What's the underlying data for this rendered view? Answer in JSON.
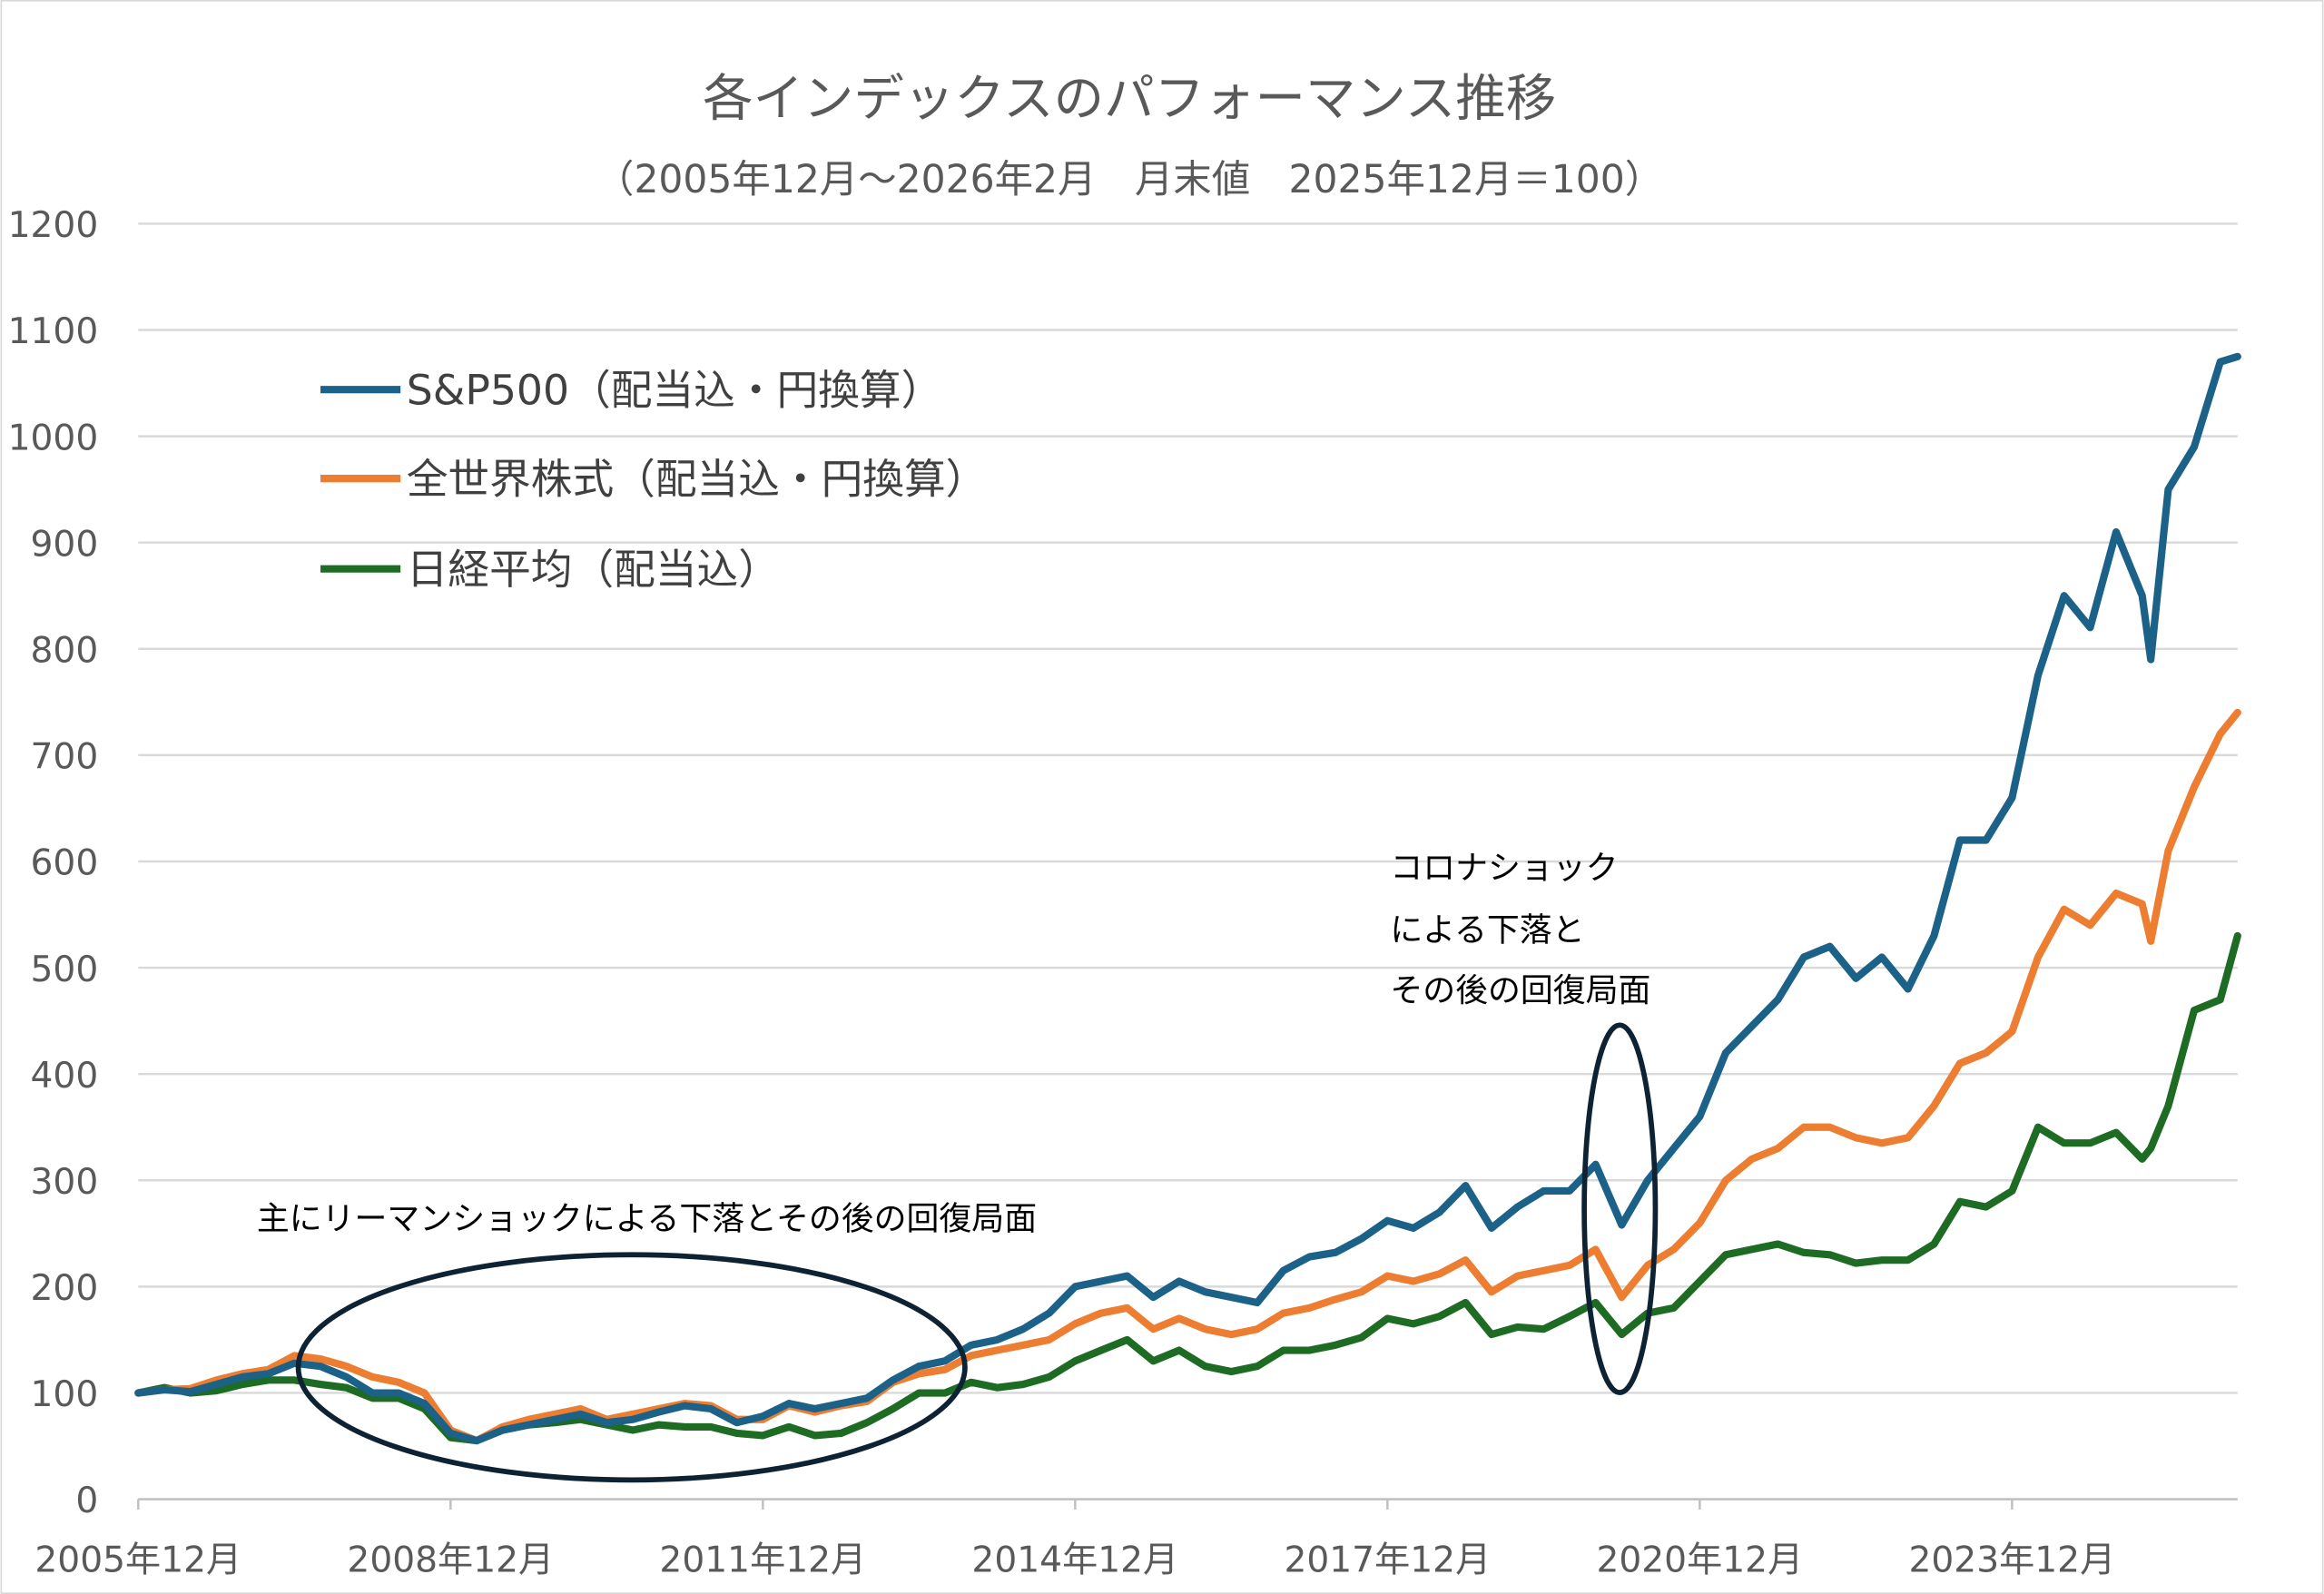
{
  "chart_data": {
    "type": "line",
    "title": "各インデックスのパフォーマンス推移",
    "subtitle": "（2005年12月～2026年2月　月末値　2025年12月＝100）",
    "xlabel": "",
    "ylabel": "",
    "ylim": [
      0,
      1200
    ],
    "yticks": [
      "0",
      "100",
      "200",
      "300",
      "400",
      "500",
      "600",
      "700",
      "800",
      "900",
      "1000",
      "1100",
      "1200"
    ],
    "xticks": [
      "2005年12月",
      "2008年12月",
      "2011年12月",
      "2014年12月",
      "2017年12月",
      "2020年12月",
      "2023年12月"
    ],
    "xtick_months": [
      "2005-12",
      "2008-12",
      "2011-12",
      "2014-12",
      "2017-12",
      "2020-12",
      "2023-12"
    ],
    "grid": true,
    "legend_position": "top-left",
    "x": [
      "2005-12",
      "2006-03",
      "2006-06",
      "2006-09",
      "2006-12",
      "2007-03",
      "2007-06",
      "2007-09",
      "2007-12",
      "2008-03",
      "2008-06",
      "2008-09",
      "2008-12",
      "2009-03",
      "2009-06",
      "2009-09",
      "2009-12",
      "2010-03",
      "2010-06",
      "2010-09",
      "2010-12",
      "2011-03",
      "2011-06",
      "2011-09",
      "2011-12",
      "2012-03",
      "2012-06",
      "2012-09",
      "2012-12",
      "2013-03",
      "2013-06",
      "2013-09",
      "2013-12",
      "2014-03",
      "2014-06",
      "2014-09",
      "2014-12",
      "2015-03",
      "2015-06",
      "2015-09",
      "2015-12",
      "2016-03",
      "2016-06",
      "2016-09",
      "2016-12",
      "2017-03",
      "2017-06",
      "2017-09",
      "2017-12",
      "2018-03",
      "2018-06",
      "2018-09",
      "2018-12",
      "2019-03",
      "2019-06",
      "2019-09",
      "2019-12",
      "2020-03",
      "2020-06",
      "2020-09",
      "2020-12",
      "2021-03",
      "2021-06",
      "2021-09",
      "2021-12",
      "2022-03",
      "2022-06",
      "2022-09",
      "2022-12",
      "2023-03",
      "2023-06",
      "2023-09",
      "2023-12",
      "2024-03",
      "2024-06",
      "2024-09",
      "2024-12",
      "2025-03",
      "2025-04",
      "2025-06",
      "2025-09",
      "2025-12",
      "2026-02"
    ],
    "series": [
      {
        "name": "S&P500（配当込・円換算）",
        "color": "#1b6188",
        "values": [
          100,
          103,
          101,
          108,
          115,
          118,
          128,
          125,
          115,
          100,
          100,
          90,
          62,
          55,
          65,
          70,
          75,
          80,
          72,
          75,
          82,
          88,
          85,
          72,
          78,
          90,
          85,
          90,
          95,
          112,
          125,
          130,
          145,
          150,
          160,
          175,
          200,
          205,
          210,
          190,
          205,
          195,
          190,
          185,
          215,
          228,
          232,
          245,
          262,
          255,
          270,
          295,
          255,
          275,
          290,
          290,
          315,
          258,
          300,
          330,
          360,
          420,
          445,
          470,
          510,
          520,
          490,
          510,
          480,
          530,
          620,
          620,
          660,
          775,
          850,
          820,
          910,
          850,
          790,
          950,
          990,
          1070,
          1075
        ]
      },
      {
        "name": "全世界株式（配当込・円換算）",
        "color": "#ed7d31",
        "values": [
          100,
          103,
          104,
          112,
          118,
          122,
          135,
          132,
          125,
          115,
          110,
          100,
          65,
          55,
          68,
          75,
          80,
          85,
          75,
          80,
          85,
          90,
          88,
          75,
          75,
          88,
          82,
          88,
          92,
          110,
          118,
          122,
          135,
          140,
          145,
          150,
          165,
          175,
          180,
          160,
          170,
          160,
          155,
          160,
          175,
          180,
          188,
          195,
          210,
          205,
          212,
          225,
          195,
          210,
          215,
          220,
          235,
          190,
          220,
          235,
          260,
          300,
          320,
          330,
          350,
          350,
          340,
          335,
          340,
          370,
          410,
          420,
          440,
          510,
          555,
          540,
          570,
          560,
          525,
          610,
          670,
          720,
          740
        ]
      },
      {
        "name": "日経平均（配当込）",
        "color": "#1e6b24",
        "values": [
          100,
          105,
          100,
          102,
          108,
          112,
          112,
          108,
          105,
          95,
          95,
          85,
          58,
          55,
          65,
          70,
          72,
          75,
          70,
          65,
          70,
          68,
          68,
          62,
          60,
          68,
          60,
          62,
          72,
          85,
          100,
          100,
          110,
          105,
          108,
          115,
          130,
          140,
          150,
          130,
          140,
          125,
          120,
          125,
          140,
          140,
          145,
          152,
          170,
          165,
          172,
          185,
          155,
          162,
          160,
          172,
          185,
          155,
          175,
          180,
          205,
          230,
          235,
          240,
          232,
          230,
          222,
          225,
          225,
          240,
          280,
          275,
          290,
          350,
          335,
          335,
          345,
          320,
          330,
          370,
          460,
          470,
          530
        ]
      }
    ],
    "annotations": [
      {
        "text": "主にリーマンショックによる下落とその後の回復局面"
      },
      {
        "lines": [
          "コロナショック",
          "による下落と",
          "その後の回復局面"
        ]
      }
    ]
  }
}
